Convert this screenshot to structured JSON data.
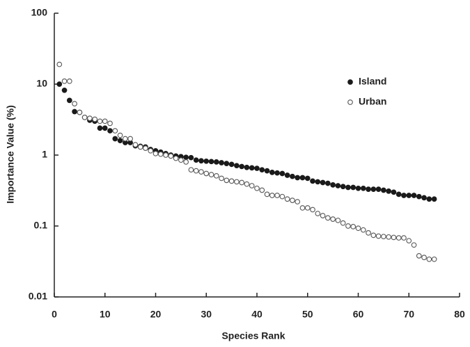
{
  "chart_data": {
    "type": "scatter",
    "x_label": "Species Rank",
    "y_label": "Importance Value (%)",
    "x": [
      1,
      2,
      3,
      4,
      5,
      6,
      7,
      8,
      9,
      10,
      11,
      12,
      13,
      14,
      15,
      16,
      17,
      18,
      19,
      20,
      21,
      22,
      23,
      24,
      25,
      26,
      27,
      28,
      29,
      30,
      31,
      32,
      33,
      34,
      35,
      36,
      37,
      38,
      39,
      40,
      41,
      42,
      43,
      44,
      45,
      46,
      47,
      48,
      49,
      50,
      51,
      52,
      53,
      54,
      55,
      56,
      57,
      58,
      59,
      60,
      61,
      62,
      63,
      64,
      65,
      66,
      67,
      68,
      69,
      70,
      71,
      72,
      73,
      74,
      75
    ],
    "series": [
      {
        "name": "Island",
        "color": "#1a1a1a",
        "filled": true,
        "values": [
          10,
          8.2,
          5.9,
          4.1,
          4.0,
          3.4,
          3.1,
          3.0,
          2.4,
          2.4,
          2.2,
          1.7,
          1.6,
          1.5,
          1.5,
          1.35,
          1.33,
          1.3,
          1.2,
          1.15,
          1.1,
          1.05,
          1.0,
          0.97,
          0.95,
          0.93,
          0.92,
          0.85,
          0.83,
          0.82,
          0.81,
          0.8,
          0.78,
          0.76,
          0.74,
          0.71,
          0.69,
          0.67,
          0.66,
          0.65,
          0.62,
          0.6,
          0.57,
          0.56,
          0.55,
          0.52,
          0.5,
          0.48,
          0.48,
          0.47,
          0.43,
          0.42,
          0.41,
          0.4,
          0.38,
          0.37,
          0.36,
          0.35,
          0.35,
          0.34,
          0.34,
          0.33,
          0.33,
          0.33,
          0.32,
          0.31,
          0.3,
          0.28,
          0.27,
          0.27,
          0.27,
          0.26,
          0.25,
          0.24,
          0.24
        ]
      },
      {
        "name": "Urban",
        "color": "#555555",
        "filled": false,
        "values": [
          19,
          11,
          11,
          5.3,
          4.0,
          3.4,
          3.3,
          3.2,
          3.0,
          3.0,
          2.8,
          2.2,
          1.9,
          1.7,
          1.7,
          1.4,
          1.3,
          1.25,
          1.15,
          1.05,
          1.03,
          1.0,
          0.97,
          0.9,
          0.85,
          0.8,
          0.62,
          0.6,
          0.58,
          0.55,
          0.53,
          0.51,
          0.47,
          0.44,
          0.43,
          0.42,
          0.41,
          0.39,
          0.37,
          0.34,
          0.32,
          0.28,
          0.27,
          0.27,
          0.26,
          0.24,
          0.23,
          0.22,
          0.18,
          0.18,
          0.17,
          0.15,
          0.14,
          0.13,
          0.125,
          0.12,
          0.11,
          0.1,
          0.098,
          0.093,
          0.088,
          0.08,
          0.074,
          0.072,
          0.071,
          0.07,
          0.069,
          0.068,
          0.068,
          0.062,
          0.054,
          0.038,
          0.036,
          0.034,
          0.034
        ]
      }
    ],
    "xlim": [
      0,
      80
    ],
    "xticks": [
      0,
      10,
      20,
      30,
      40,
      50,
      60,
      70,
      80
    ],
    "ylim": [
      0.01,
      100
    ],
    "yticks": [
      0.01,
      0.1,
      1,
      10,
      100
    ],
    "log_y": true,
    "legend": "upper-right"
  }
}
